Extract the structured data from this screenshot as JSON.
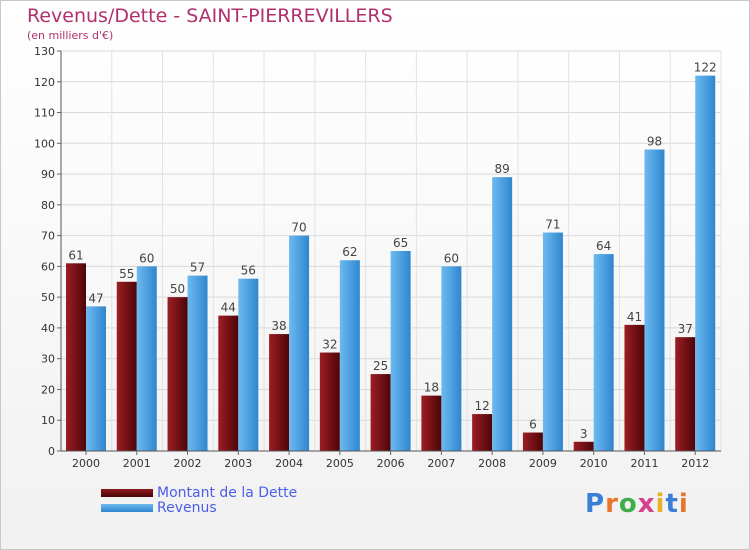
{
  "header": {
    "title": "Revenus/Dette - SAINT-PIERREVILLERS",
    "subtitle": "(en milliers d'€)"
  },
  "logo": {
    "text": "Proxiti",
    "letters": [
      {
        "ch": "P",
        "color": "#3a7fd5"
      },
      {
        "ch": "r",
        "color": "#e8762a"
      },
      {
        "ch": "o",
        "color": "#3fae49"
      },
      {
        "ch": "x",
        "color": "#d63f8c"
      },
      {
        "ch": "i",
        "color": "#e8b12a"
      },
      {
        "ch": "t",
        "color": "#3a7fd5"
      },
      {
        "ch": "i",
        "color": "#e8762a"
      }
    ]
  },
  "chart_data": {
    "type": "bar",
    "title": "Revenus/Dette - SAINT-PIERREVILLERS",
    "subtitle": "(en milliers d'€)",
    "categories": [
      "2000",
      "2001",
      "2002",
      "2003",
      "2004",
      "2005",
      "2006",
      "2007",
      "2008",
      "2009",
      "2010",
      "2011",
      "2012"
    ],
    "series": [
      {
        "name": "Montant de la Dette",
        "color": "#6b0c10",
        "values": [
          61,
          55,
          50,
          44,
          38,
          32,
          25,
          18,
          12,
          6,
          3,
          41,
          37
        ]
      },
      {
        "name": "Revenus",
        "color": "#4ea7e6",
        "values": [
          47,
          60,
          57,
          56,
          70,
          62,
          65,
          60,
          89,
          71,
          64,
          98,
          122
        ]
      }
    ],
    "ylim": [
      0,
      130
    ],
    "yticks": [
      0,
      10,
      20,
      30,
      40,
      50,
      60,
      70,
      80,
      90,
      100,
      110,
      120,
      130
    ],
    "grid": true,
    "legend": "bottom-left"
  }
}
